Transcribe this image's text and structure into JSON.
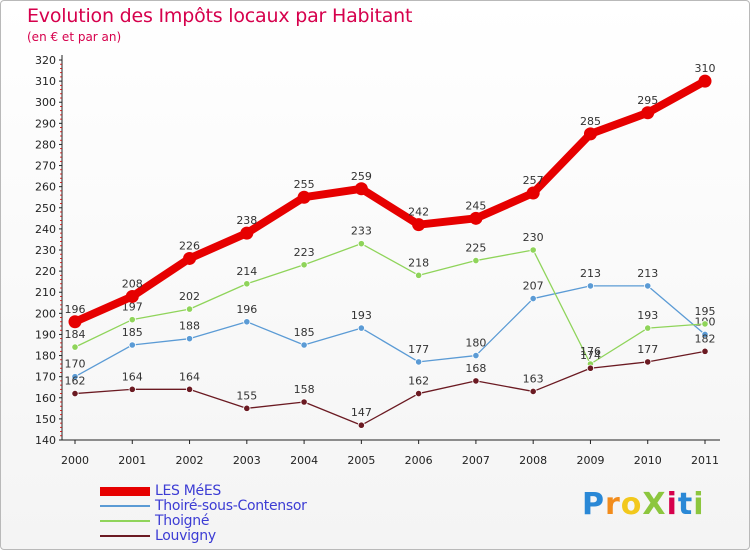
{
  "header": {
    "title": "Evolution des Impôts locaux par Habitant",
    "subtitle": "(en € et par an)"
  },
  "logo": {
    "text": "ProXiti",
    "letters": [
      "P",
      "r",
      "o",
      "X",
      "i",
      "t",
      "i"
    ],
    "colors": [
      "#2a88d6",
      "#f28c1c",
      "#f2c81c",
      "#8cc63e",
      "#d6004c",
      "#2a88d6",
      "#8cc63e"
    ]
  },
  "chart_data": {
    "type": "line",
    "title": "Evolution des Impôts locaux par Habitant",
    "subtitle": "(en € et par an)",
    "xlabel": "",
    "ylabel": "",
    "categories": [
      "2000",
      "2001",
      "2002",
      "2003",
      "2004",
      "2005",
      "2006",
      "2007",
      "2008",
      "2009",
      "2010",
      "2011"
    ],
    "ylim": [
      140,
      320
    ],
    "yticks": [
      140,
      150,
      160,
      170,
      180,
      190,
      200,
      210,
      220,
      230,
      240,
      250,
      260,
      270,
      280,
      290,
      300,
      310,
      320
    ],
    "series": [
      {
        "name": "LES MéES",
        "color": "#e60000",
        "values": [
          196,
          208,
          226,
          238,
          255,
          259,
          242,
          245,
          257,
          285,
          295,
          310
        ],
        "emphasis": true
      },
      {
        "name": "Thoiré-sous-Contensor",
        "color": "#5b9bd5",
        "values": [
          170,
          185,
          188,
          196,
          185,
          193,
          177,
          180,
          207,
          213,
          213,
          190
        ],
        "emphasis": false
      },
      {
        "name": "Thoigné",
        "color": "#8fd45a",
        "values": [
          184,
          197,
          202,
          214,
          223,
          233,
          218,
          225,
          230,
          176,
          193,
          195
        ],
        "emphasis": false
      },
      {
        "name": "Louvigny",
        "color": "#6b1a22",
        "values": [
          162,
          164,
          164,
          155,
          158,
          147,
          162,
          168,
          163,
          174,
          177,
          182
        ],
        "emphasis": false
      }
    ],
    "legend_position": "bottom-left",
    "grid": false
  }
}
